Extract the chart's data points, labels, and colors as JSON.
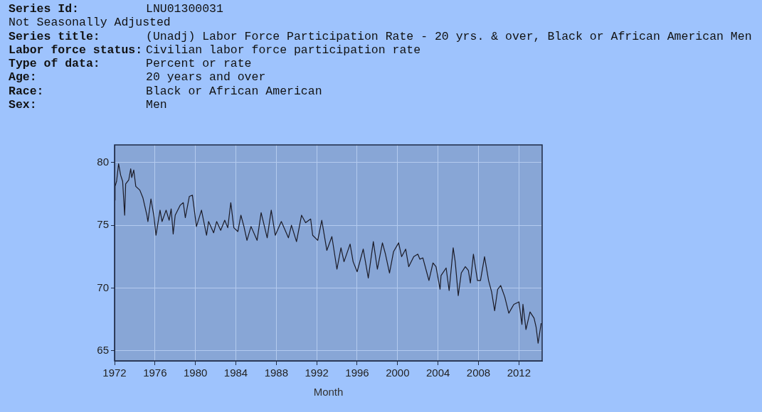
{
  "chart_data": {
    "type": "line",
    "annotations": [
      "Series Id: LNU01300031",
      "Not Seasonally Adjusted",
      "Series title: (Unadj) Labor Force Participation Rate - 20 yrs. & over, Black or African American Men",
      "Labor force status: Civilian labor force participation rate",
      "Type of data: Percent or rate",
      "Age: 20 years and over",
      "Race: Black or African American",
      "Sex: Men"
    ],
    "xlabel": "Month",
    "x": [
      1972.0,
      1972.05,
      1972.2,
      1972.4,
      1972.6,
      1972.8,
      1973.0,
      1973.1,
      1973.4,
      1973.6,
      1973.7,
      1973.9,
      1974.1,
      1974.5,
      1974.8,
      1975.2,
      1975.3,
      1975.6,
      1975.9,
      1976.1,
      1976.5,
      1976.7,
      1977.1,
      1977.4,
      1977.6,
      1977.8,
      1978.0,
      1978.5,
      1978.8,
      1979.0,
      1979.4,
      1979.7,
      1980.1,
      1980.6,
      1981.1,
      1981.3,
      1981.8,
      1982.1,
      1982.5,
      1982.9,
      1983.2,
      1983.5,
      1983.8,
      1984.2,
      1984.5,
      1984.8,
      1985.1,
      1985.5,
      1986.1,
      1986.5,
      1987.1,
      1987.5,
      1987.9,
      1988.5,
      1989.2,
      1989.5,
      1990.0,
      1990.5,
      1990.9,
      1991.4,
      1991.6,
      1992.1,
      1992.5,
      1993.0,
      1993.5,
      1994.0,
      1994.4,
      1994.7,
      1995.3,
      1995.6,
      1996.0,
      1996.6,
      1997.1,
      1997.6,
      1998.0,
      1998.5,
      1998.8,
      1999.2,
      1999.6,
      2000.1,
      2000.4,
      2000.8,
      2001.1,
      2001.6,
      2002.0,
      2002.2,
      2002.5,
      2002.9,
      2003.1,
      2003.5,
      2003.8,
      2004.2,
      2004.3,
      2004.8,
      2005.1,
      2005.5,
      2005.7,
      2006.0,
      2006.3,
      2006.7,
      2007.0,
      2007.2,
      2007.5,
      2007.9,
      2008.2,
      2008.6,
      2009.0,
      2009.3,
      2009.6,
      2009.9,
      2010.2,
      2010.6,
      2011.0,
      2011.5,
      2012.0,
      2012.3,
      2012.4,
      2012.7,
      2013.1,
      2013.5,
      2013.7,
      2013.9,
      2014.2
    ],
    "series": [
      {
        "color": "#1a1a26",
        "values": [
          77.0,
          78.1,
          78.5,
          79.9,
          79.0,
          78.5,
          75.8,
          78.3,
          78.6,
          79.5,
          78.8,
          79.4,
          78.1,
          77.8,
          77.2,
          75.8,
          75.3,
          77.1,
          75.7,
          74.2,
          76.2,
          75.3,
          76.2,
          75.4,
          76.3,
          74.3,
          75.8,
          76.6,
          76.8,
          75.6,
          77.3,
          77.4,
          74.9,
          76.2,
          74.2,
          75.3,
          74.4,
          75.3,
          74.6,
          75.4,
          74.8,
          76.8,
          74.8,
          74.5,
          75.8,
          74.9,
          73.8,
          74.9,
          73.8,
          76.0,
          74.0,
          76.2,
          74.2,
          75.3,
          74.0,
          75.0,
          73.7,
          75.8,
          75.2,
          75.5,
          74.2,
          73.8,
          75.4,
          73.0,
          74.1,
          71.5,
          73.2,
          72.1,
          73.5,
          72.1,
          71.3,
          73.1,
          70.8,
          73.7,
          71.5,
          73.6,
          72.7,
          71.2,
          72.9,
          73.6,
          72.5,
          73.1,
          71.7,
          72.5,
          72.7,
          72.3,
          72.4,
          71.2,
          70.6,
          72.0,
          71.7,
          69.9,
          71.0,
          71.6,
          69.8,
          73.2,
          72.1,
          69.4,
          71.2,
          71.7,
          71.4,
          70.4,
          72.7,
          70.6,
          70.6,
          72.5,
          70.6,
          69.7,
          68.2,
          69.9,
          70.2,
          69.3,
          68.0,
          68.7,
          68.9,
          67.1,
          68.7,
          66.7,
          68.1,
          67.6,
          66.9,
          65.6,
          67.2
        ]
      }
    ],
    "xlim": [
      1972,
      2014.3
    ],
    "ylim": [
      64.2,
      81.4
    ],
    "xticks": [
      1972,
      1976,
      1980,
      1984,
      1988,
      1992,
      1996,
      2000,
      2004,
      2008,
      2012
    ],
    "yticks": [
      65,
      70,
      75,
      80
    ],
    "grid": true,
    "legend": false,
    "marker": "none",
    "line_style": "solid"
  }
}
